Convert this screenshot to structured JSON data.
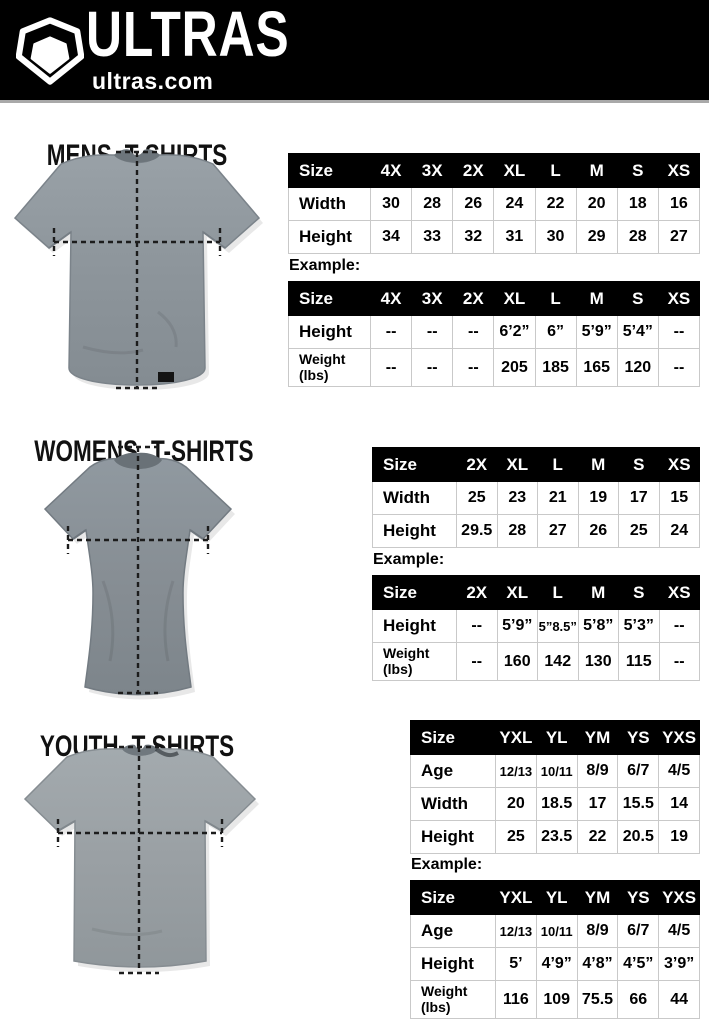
{
  "header": {
    "brand": "ULTRAS",
    "site": "ultras.com",
    "logo_icon": "pentagon-shield-icon"
  },
  "colors": {
    "header_bg": "#000000",
    "table_header_bg": "#000000",
    "table_border": "#c9c9c9",
    "page_bg": "#ffffff",
    "shirt_gray_mens": "#8d959b",
    "shirt_gray_womens": "#878e94",
    "shirt_gray_youth": "#9aa0a4"
  },
  "sections": [
    {
      "id": "mens",
      "title": "MENS T-SHIRTS",
      "example_label": "Example:",
      "size_table": {
        "header": [
          "Size",
          "4X",
          "3X",
          "2X",
          "XL",
          "L",
          "M",
          "S",
          "XS"
        ],
        "rows": [
          {
            "label": "Width",
            "values": [
              "30",
              "28",
              "26",
              "24",
              "22",
              "20",
              "18",
              "16"
            ]
          },
          {
            "label": "Height",
            "values": [
              "34",
              "33",
              "32",
              "31",
              "30",
              "29",
              "28",
              "27"
            ]
          }
        ]
      },
      "example_table": {
        "header": [
          "Size",
          "4X",
          "3X",
          "2X",
          "XL",
          "L",
          "M",
          "S",
          "XS"
        ],
        "rows": [
          {
            "label": "Height",
            "values": [
              "--",
              "--",
              "--",
              "6’2”",
              "6”",
              "5’9”",
              "5’4”",
              "--"
            ]
          },
          {
            "label": "Weight\n(lbs)",
            "values": [
              "--",
              "--",
              "--",
              "205",
              "185",
              "165",
              "120",
              "--"
            ]
          }
        ]
      }
    },
    {
      "id": "womens",
      "title": "WOMENS T-SHIRTS",
      "example_label": "Example:",
      "size_table": {
        "header": [
          "Size",
          "2X",
          "XL",
          "L",
          "M",
          "S",
          "XS"
        ],
        "rows": [
          {
            "label": "Width",
            "values": [
              "25",
              "23",
              "21",
              "19",
              "17",
              "15"
            ]
          },
          {
            "label": "Height",
            "values": [
              "29.5",
              "28",
              "27",
              "26",
              "25",
              "24"
            ]
          }
        ]
      },
      "example_table": {
        "header": [
          "Size",
          "2X",
          "XL",
          "L",
          "M",
          "S",
          "XS"
        ],
        "rows": [
          {
            "label": "Height",
            "values": [
              "--",
              "5’9”",
              "5”8.5”",
              "5’8”",
              "5’3”",
              "--"
            ]
          },
          {
            "label": "Weight\n(lbs)",
            "values": [
              "--",
              "160",
              "142",
              "130",
              "115",
              "--"
            ]
          }
        ]
      }
    },
    {
      "id": "youth",
      "title": "YOUTH T-SHIRTS",
      "example_label": "Example:",
      "size_table": {
        "header": [
          "Size",
          "YXL",
          "YL",
          "YM",
          "YS",
          "YXS"
        ],
        "rows": [
          {
            "label": "Age",
            "values": [
              "12/13",
              "10/11",
              "8/9",
              "6/7",
              "4/5"
            ]
          },
          {
            "label": "Width",
            "values": [
              "20",
              "18.5",
              "17",
              "15.5",
              "14"
            ]
          },
          {
            "label": "Height",
            "values": [
              "25",
              "23.5",
              "22",
              "20.5",
              "19"
            ]
          }
        ]
      },
      "example_table": {
        "header": [
          "Size",
          "YXL",
          "YL",
          "YM",
          "YS",
          "YXS"
        ],
        "rows": [
          {
            "label": "Age",
            "values": [
              "12/13",
              "10/11",
              "8/9",
              "6/7",
              "4/5"
            ]
          },
          {
            "label": "Height",
            "values": [
              "5’",
              "4’9”",
              "4’8”",
              "4’5”",
              "3’9”"
            ]
          },
          {
            "label": "Weight\n(lbs)",
            "values": [
              "116",
              "109",
              "75.5",
              "66",
              "44"
            ]
          }
        ]
      }
    }
  ]
}
